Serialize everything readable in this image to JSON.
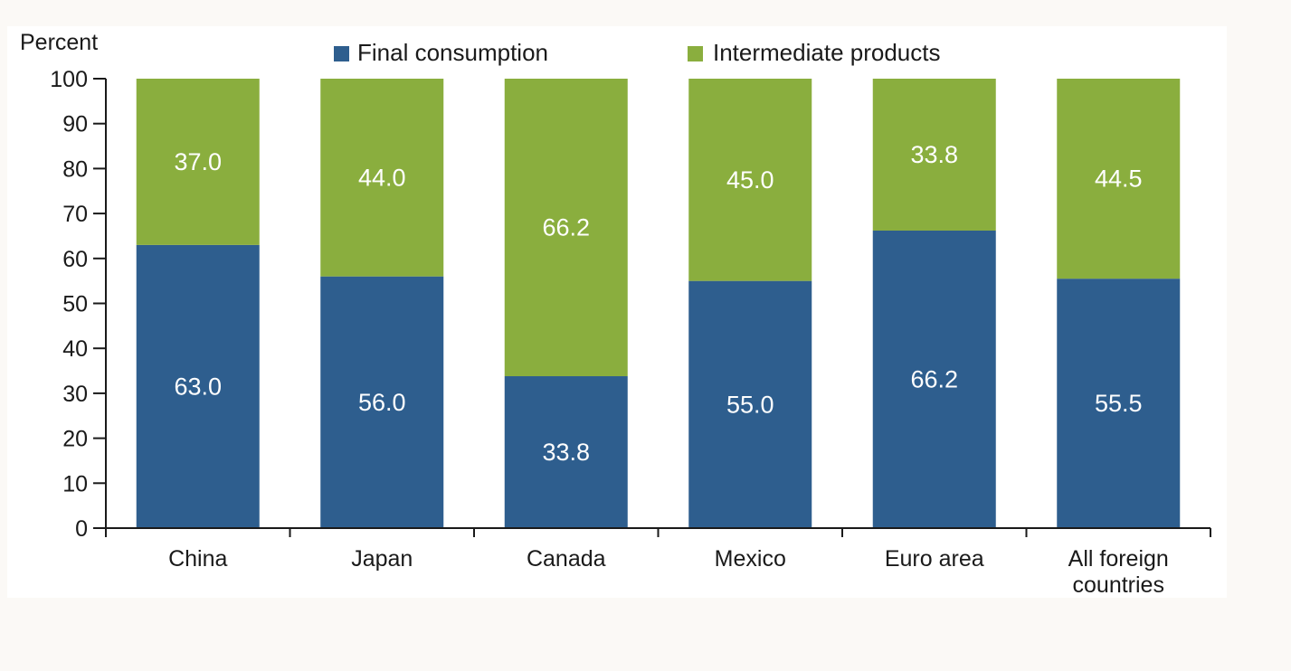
{
  "chart_data": {
    "type": "bar",
    "stacked": true,
    "unit_label": "Percent",
    "categories": [
      "China",
      "Japan",
      "Canada",
      "Mexico",
      "Euro area",
      "All foreign countries"
    ],
    "category_lines": [
      [
        "China"
      ],
      [
        "Japan"
      ],
      [
        "Canada"
      ],
      [
        "Mexico"
      ],
      [
        "Euro area"
      ],
      [
        "All foreign",
        "countries"
      ]
    ],
    "series": [
      {
        "name": "Final consumption",
        "color": "#2e5e8e",
        "values": [
          63.0,
          56.0,
          33.8,
          55.0,
          66.2,
          55.5
        ],
        "labels": [
          "63.0",
          "56.0",
          "33.8",
          "55.0",
          "66.2",
          "55.5"
        ]
      },
      {
        "name": "Intermediate products",
        "color": "#8aae3e",
        "values": [
          37.0,
          44.0,
          66.2,
          45.0,
          33.8,
          44.5
        ],
        "labels": [
          "37.0",
          "44.0",
          "66.2",
          "45.0",
          "33.8",
          "44.5"
        ]
      }
    ],
    "ylim": [
      0,
      100
    ],
    "yticks": [
      0,
      10,
      20,
      30,
      40,
      50,
      60,
      70,
      80,
      90,
      100
    ],
    "ytick_labels": [
      "0",
      "10",
      "20",
      "30",
      "40",
      "50",
      "60",
      "70",
      "80",
      "90",
      "100"
    ],
    "grid": false,
    "legend_position": "top"
  }
}
